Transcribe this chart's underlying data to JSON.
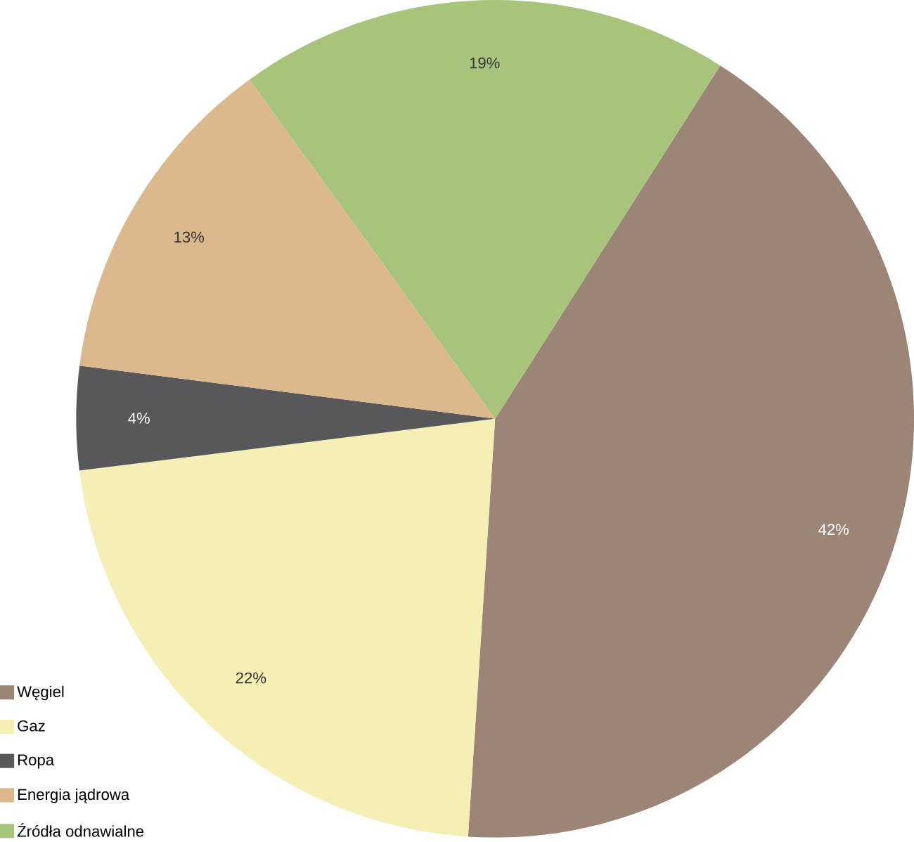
{
  "chart_data": {
    "type": "pie",
    "categories": [
      "Węgiel",
      "Gaz",
      "Ropa",
      "Energia jądrowa",
      "Źródła odnawialne"
    ],
    "values": [
      42,
      22,
      4,
      13,
      19
    ],
    "colors": [
      "#9c8577",
      "#f5efb5",
      "#58585a",
      "#dcb98c",
      "#a8c47c"
    ],
    "value_labels": [
      "42%",
      "22%",
      "4%",
      "13%",
      "19%"
    ],
    "legend": "bottom left"
  }
}
